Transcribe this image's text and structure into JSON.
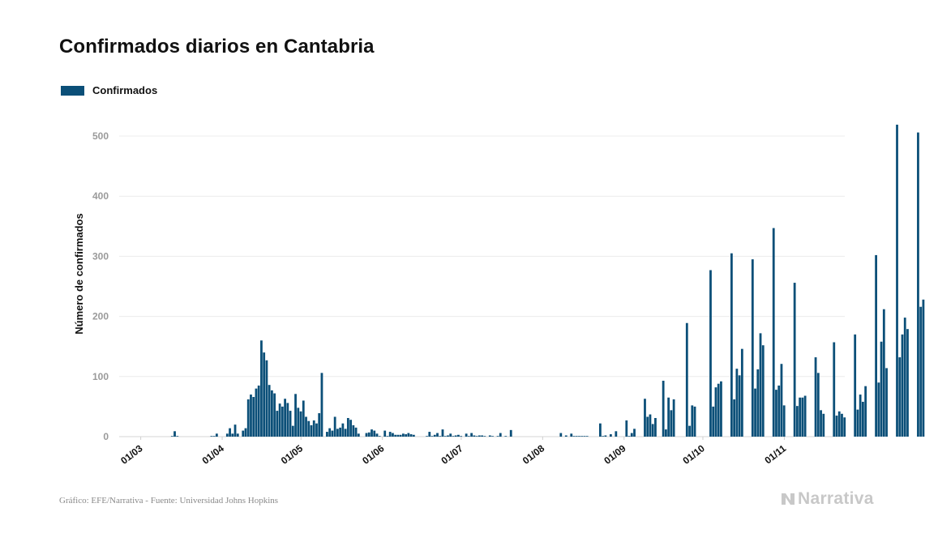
{
  "chart_data": {
    "type": "bar",
    "title": "Confirmados diarios en Cantabria",
    "ylabel": "Número de confirmados",
    "xlabel": "",
    "ylim": [
      0,
      545
    ],
    "yticks": [
      0,
      100,
      200,
      300,
      400,
      500
    ],
    "grid": true,
    "legend_position": "top-left",
    "x_start": "2020-03-01",
    "x_end": "2020-11-05",
    "x_tick_labels": [
      {
        "date": "2020-03-01",
        "label": "01/03"
      },
      {
        "date": "2020-04-01",
        "label": "01/04"
      },
      {
        "date": "2020-05-01",
        "label": "01/05"
      },
      {
        "date": "2020-06-01",
        "label": "01/06"
      },
      {
        "date": "2020-07-01",
        "label": "01/07"
      },
      {
        "date": "2020-08-01",
        "label": "01/08"
      },
      {
        "date": "2020-09-01",
        "label": "01/09"
      },
      {
        "date": "2020-10-01",
        "label": "01/10"
      },
      {
        "date": "2020-11-01",
        "label": "01/11"
      }
    ],
    "series": [
      {
        "name": "Confirmados",
        "color": "#0b4f78",
        "values": [
          0,
          0,
          0,
          0,
          0,
          0,
          0,
          0,
          0,
          0,
          0,
          0,
          1,
          9,
          1,
          0,
          0,
          0,
          0,
          0,
          0,
          0,
          0,
          0,
          0,
          0,
          0,
          1,
          1,
          5,
          0,
          0,
          0,
          5,
          14,
          5,
          20,
          5,
          0,
          10,
          14,
          62,
          70,
          66,
          80,
          85,
          160,
          140,
          127,
          86,
          77,
          72,
          43,
          55,
          50,
          63,
          56,
          43,
          18,
          71,
          48,
          42,
          60,
          33,
          26,
          19,
          27,
          22,
          39,
          106,
          0,
          8,
          14,
          10,
          33,
          13,
          15,
          22,
          13,
          31,
          28,
          19,
          15,
          5,
          0,
          0,
          6,
          7,
          12,
          10,
          5,
          1,
          0,
          10,
          1,
          8,
          6,
          3,
          3,
          3,
          5,
          4,
          6,
          4,
          3,
          0,
          0,
          0,
          0,
          1,
          8,
          1,
          3,
          6,
          1,
          12,
          1,
          2,
          5,
          1,
          2,
          3,
          1,
          0,
          5,
          1,
          6,
          2,
          1,
          2,
          2,
          1,
          0,
          2,
          1,
          0,
          1,
          6,
          0,
          1,
          0,
          11,
          0,
          0,
          0,
          0,
          0,
          0,
          0,
          0,
          0,
          0,
          0,
          0,
          0,
          0,
          0,
          0,
          0,
          0,
          6,
          0,
          2,
          0,
          5,
          1,
          1,
          1,
          1,
          1,
          1,
          0,
          0,
          0,
          0,
          22,
          1,
          2,
          0,
          4,
          0,
          9,
          0,
          0,
          0,
          27,
          1,
          6,
          13,
          0,
          0,
          0,
          63,
          33,
          37,
          21,
          31,
          0,
          0,
          93,
          12,
          65,
          44,
          62,
          0,
          0,
          0,
          0,
          189,
          18,
          52,
          50,
          0,
          0,
          0,
          0,
          0,
          277,
          50,
          82,
          88,
          92,
          0,
          0,
          0,
          305,
          62,
          113,
          102,
          146,
          0,
          0,
          0,
          295,
          80,
          112,
          172,
          152,
          0,
          0,
          0,
          347,
          78,
          85,
          121,
          52,
          0,
          0,
          0,
          256,
          51,
          65,
          65,
          68,
          0,
          0,
          0,
          132,
          106,
          44,
          38,
          0,
          0,
          0,
          157,
          35,
          42,
          38,
          32,
          0,
          0,
          0,
          170,
          45,
          70,
          58,
          84,
          0,
          0,
          0,
          302,
          90,
          158,
          212,
          114,
          0,
          0,
          0,
          519,
          132,
          170,
          198,
          179,
          0,
          0,
          0,
          506,
          216,
          228
        ]
      }
    ]
  },
  "footer": {
    "source": "Gráfico: EFE/Narrativa - Fuente: Universidad Johns Hopkins"
  },
  "logo": {
    "text": "Narrativa",
    "icon": "narrativa-logo-icon"
  }
}
